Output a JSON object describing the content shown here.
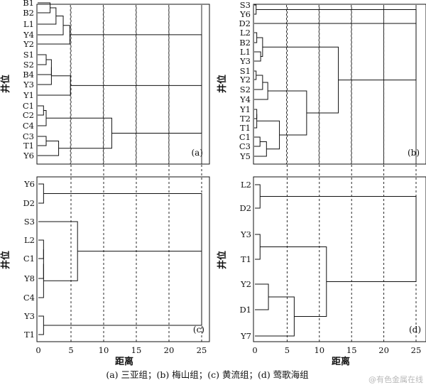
{
  "caption": "(a)  三亚组；(b)  梅山组；(c)  黄流组；(d)  莺歌海组",
  "watermark": "@有色金属在线",
  "colors": {
    "line": "#111111",
    "grid": "#111111",
    "background": "#ffffff"
  },
  "chart_data": [
    {
      "type": "dendrogram",
      "panel": "(a)",
      "ylabel": "井位",
      "xlabel": "",
      "xticks": [],
      "xlim": [
        0,
        25
      ],
      "grid": "dashed vertical at x = 5, 10, 15, 20, 25",
      "leaves": [
        "B1",
        "B2",
        "L1",
        "Y4",
        "Y2",
        "S1",
        "S2",
        "B4",
        "Y3",
        "Y1",
        "C1",
        "C2",
        "C4",
        "C3",
        "T1",
        "Y6"
      ],
      "merges": [
        {
          "a": 0,
          "b": 1,
          "h": 1.9
        },
        {
          "a": 16,
          "b": 2,
          "h": 2.8
        },
        {
          "a": 17,
          "b": 3,
          "h": 3.9
        },
        {
          "a": 18,
          "b": 4,
          "h": 4.9
        },
        {
          "a": 5,
          "b": 6,
          "h": 1.3
        },
        {
          "a": 20,
          "b": 7,
          "h": 2.1
        },
        {
          "a": 21,
          "b": 8,
          "h": 2.1
        },
        {
          "a": 22,
          "b": 9,
          "h": 5.0
        },
        {
          "a": 19,
          "b": 23,
          "h": 25.0
        },
        {
          "a": 10,
          "b": 11,
          "h": 0.9
        },
        {
          "a": 25,
          "b": 12,
          "h": 1.3
        },
        {
          "a": 13,
          "b": 14,
          "h": 1.3
        },
        {
          "a": 27,
          "b": 15,
          "h": 3.2
        },
        {
          "a": 26,
          "b": 28,
          "h": 11.3
        },
        {
          "a": 24,
          "b": 29,
          "h": 25.0
        }
      ]
    },
    {
      "type": "dendrogram",
      "panel": "(b)",
      "ylabel": "井位",
      "xlabel": "",
      "xticks": [],
      "xlim": [
        0,
        25
      ],
      "grid": "dashed vertical at x = 5, 10, 15, 20, 25",
      "leaves": [
        "S3",
        "Y6",
        "D2",
        "L2",
        "B2",
        "L1",
        "Y3",
        "S1",
        "Y2",
        "S2",
        "Y4",
        "Y1",
        "T2",
        "T1",
        "C1",
        "C3",
        "Y5"
      ],
      "merges": [
        {
          "a": 0,
          "b": 1,
          "h": 0.3
        },
        {
          "a": 3,
          "b": 4,
          "h": 0.4
        },
        {
          "a": 5,
          "b": 6,
          "h": 1.0
        },
        {
          "a": 19,
          "b": 18,
          "h": 1.3
        },
        {
          "a": 7,
          "b": 8,
          "h": 0.3
        },
        {
          "a": 21,
          "b": 9,
          "h": 1.3
        },
        {
          "a": 22,
          "b": 10,
          "h": 2.1
        },
        {
          "a": 11,
          "b": 12,
          "h": 0.4
        },
        {
          "a": 24,
          "b": 13,
          "h": 0.4
        },
        {
          "a": 14,
          "b": 15,
          "h": 0.9
        },
        {
          "a": 26,
          "b": 16,
          "h": 1.9
        },
        {
          "a": 25,
          "b": 27,
          "h": 3.9
        },
        {
          "a": 23,
          "b": 28,
          "h": 8.1
        },
        {
          "a": 20,
          "b": 29,
          "h": 13.0
        },
        {
          "a": 17,
          "b": 2,
          "h": 25.0
        },
        {
          "a": 31,
          "b": 30,
          "h": 25.0
        }
      ]
    },
    {
      "type": "dendrogram",
      "panel": "(c)",
      "ylabel": "井位",
      "xlabel": "距离",
      "xticks": [
        0,
        5,
        10,
        15,
        20,
        25
      ],
      "xlim": [
        0,
        25
      ],
      "grid": "dashed vertical at x = 5, 10, 15, 20, 25",
      "leaves": [
        "Y6",
        "D2",
        "S3",
        "L2",
        "C1",
        "Y8",
        "C4",
        "Y3",
        "T1"
      ],
      "merges": [
        {
          "a": 0,
          "b": 1,
          "h": 0.8
        },
        {
          "a": 3,
          "b": 4,
          "h": 0.8
        },
        {
          "a": 10,
          "b": 5,
          "h": 0.8
        },
        {
          "a": 11,
          "b": 6,
          "h": 0.8
        },
        {
          "a": 2,
          "b": 12,
          "h": 6.0
        },
        {
          "a": 13,
          "b": 9,
          "h": 25.0
        },
        {
          "a": 7,
          "b": 8,
          "h": 0.8
        },
        {
          "a": 14,
          "b": 15,
          "h": 25.0
        }
      ]
    },
    {
      "type": "dendrogram",
      "panel": "(d)",
      "ylabel": "井位",
      "xlabel": "距离",
      "xticks": [
        0,
        5,
        10,
        15,
        20,
        25
      ],
      "xlim": [
        0,
        25
      ],
      "grid": "dashed vertical at x = 5, 10, 15, 20, 25",
      "leaves": [
        "L2",
        "D2",
        "Y3",
        "T1",
        "Y2",
        "D1",
        "Y7"
      ],
      "merges": [
        {
          "a": 0,
          "b": 1,
          "h": 0.8
        },
        {
          "a": 2,
          "b": 3,
          "h": 0.8
        },
        {
          "a": 4,
          "b": 5,
          "h": 2.1
        },
        {
          "a": 9,
          "b": 6,
          "h": 6.1
        },
        {
          "a": 8,
          "b": 10,
          "h": 11.1
        },
        {
          "a": 7,
          "b": 11,
          "h": 25.0
        }
      ]
    }
  ]
}
